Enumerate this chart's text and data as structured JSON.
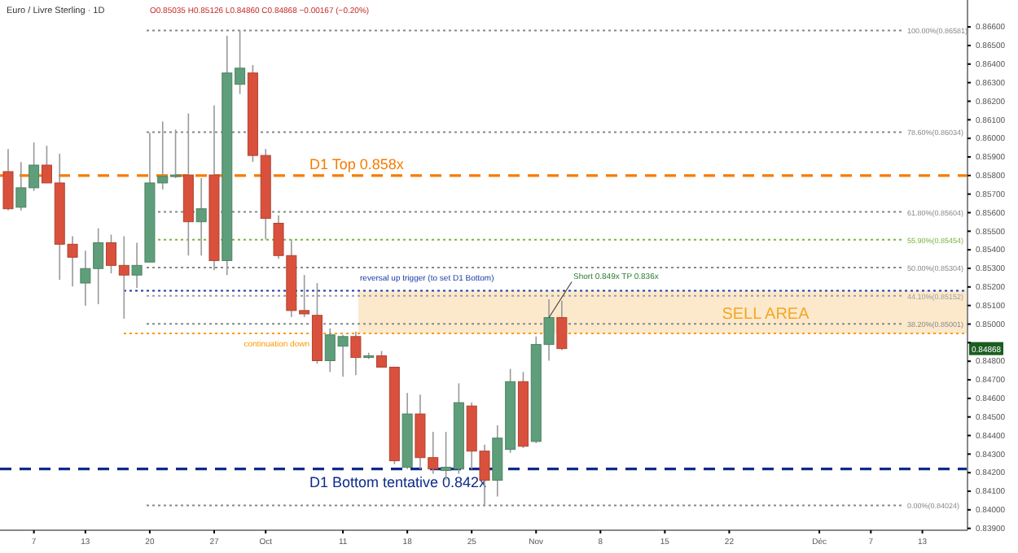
{
  "chart_data": {
    "type": "candlestick",
    "title": "Euro / Livre Sterling · 1D",
    "subtitle": "O0.85035 H0.85126 L0.84860 C0.84868 −0.00167 (−0.20%)",
    "categories": [
      null,
      null,
      "7",
      null,
      null,
      null,
      "13",
      null,
      null,
      null,
      null,
      "20",
      null,
      null,
      null,
      null,
      "27",
      null,
      null,
      null,
      "Oct",
      null,
      null,
      null,
      null,
      null,
      "11",
      null,
      null,
      null,
      null,
      "18",
      null,
      null,
      null,
      null,
      "25",
      null,
      null,
      null,
      null,
      "Nov",
      null,
      null,
      null,
      null,
      "8",
      null,
      null,
      null,
      null,
      "15",
      null,
      null,
      null,
      null,
      "22",
      null,
      null,
      null,
      null,
      null,
      null,
      "Déc",
      null,
      null,
      null,
      "7",
      null,
      null,
      null,
      "13",
      null,
      null,
      null
    ],
    "ohlc": [
      [
        0.85821,
        0.85943,
        0.85612,
        0.85621
      ],
      [
        0.85629,
        0.85873,
        0.85612,
        0.85734
      ],
      [
        0.85734,
        0.85978,
        0.85717,
        0.85856
      ],
      [
        0.85856,
        0.8596,
        0.8576,
        0.8576
      ],
      [
        0.8576,
        0.85917,
        0.85238,
        0.8543
      ],
      [
        0.8543,
        0.85473,
        0.85203,
        0.8536
      ],
      [
        0.85221,
        0.85395,
        0.85099,
        0.85299
      ],
      [
        0.85299,
        0.85516,
        0.85107,
        0.85438
      ],
      [
        0.85438,
        0.85482,
        0.85273,
        0.85316
      ],
      [
        0.85316,
        0.85473,
        0.85029,
        0.85264
      ],
      [
        0.85264,
        0.85438,
        0.85195,
        0.85316
      ],
      [
        0.85334,
        0.8603,
        0.85334,
        0.8576
      ],
      [
        0.8576,
        0.86091,
        0.85725,
        0.85795
      ],
      [
        0.85795,
        0.86047,
        0.85786,
        0.85803
      ],
      [
        0.85803,
        0.86134,
        0.85369,
        0.85551
      ],
      [
        0.85551,
        0.85786,
        0.85369,
        0.85621
      ],
      [
        0.85803,
        0.86178,
        0.8529,
        0.85342
      ],
      [
        0.85342,
        0.86552,
        0.85264,
        0.86352
      ],
      [
        0.86291,
        0.86581,
        0.86239,
        0.86378
      ],
      [
        0.86352,
        0.86395,
        0.85873,
        0.85908
      ],
      [
        0.85908,
        0.85943,
        0.85456,
        0.85569
      ],
      [
        0.85543,
        0.85586,
        0.85351,
        0.85369
      ],
      [
        0.85369,
        0.85456,
        0.85038,
        0.85073
      ],
      [
        0.85073,
        0.85264,
        0.85038,
        0.85055
      ],
      [
        0.85047,
        0.85221,
        0.84786,
        0.84803
      ],
      [
        0.84803,
        0.84977,
        0.84742,
        0.84942
      ],
      [
        0.84881,
        0.84942,
        0.84716,
        0.84933
      ],
      [
        0.84933,
        0.8496,
        0.84725,
        0.8482
      ],
      [
        0.8482,
        0.84846,
        0.84812,
        0.84829
      ],
      [
        0.84829,
        0.84855,
        0.84768,
        0.84768
      ],
      [
        0.84768,
        0.84768,
        0.84246,
        0.84264
      ],
      [
        0.84229,
        0.84629,
        0.8422,
        0.84516
      ],
      [
        0.84516,
        0.8462,
        0.8422,
        0.84281
      ],
      [
        0.84281,
        0.8442,
        0.84194,
        0.8422
      ],
      [
        0.84212,
        0.8442,
        0.84159,
        0.84229
      ],
      [
        0.8422,
        0.84681,
        0.84194,
        0.84577
      ],
      [
        0.84559,
        0.84577,
        0.8422,
        0.84316
      ],
      [
        0.84316,
        0.84351,
        0.84024,
        0.84159
      ],
      [
        0.84159,
        0.84455,
        0.84072,
        0.84386
      ],
      [
        0.84325,
        0.84759,
        0.84307,
        0.8469
      ],
      [
        0.8469,
        0.84742,
        0.84333,
        0.84342
      ],
      [
        0.84368,
        0.84933,
        0.84359,
        0.8489
      ],
      [
        0.8489,
        0.85134,
        0.84803,
        0.85035
      ],
      [
        0.85035,
        0.85126,
        0.8486,
        0.84868
      ],
      null,
      null,
      null,
      null,
      null,
      null,
      null,
      null,
      null,
      null,
      null,
      null,
      null,
      null,
      null,
      null,
      null,
      null,
      null,
      null,
      null,
      null,
      null,
      null,
      null,
      null,
      null,
      null,
      null,
      null,
      null
    ],
    "colors": [
      "#d9513c",
      "#5f9e7a",
      "#5f9e7a",
      "#d9513c",
      "#d9513c",
      "#d9513c",
      "#5f9e7a",
      "#5f9e7a",
      "#d9513c",
      "#d9513c",
      "#5f9e7a",
      "#5f9e7a",
      "#5f9e7a",
      "#5f9e7a",
      "#d9513c",
      "#5f9e7a",
      "#d9513c",
      "#5f9e7a",
      "#5f9e7a",
      "#d9513c",
      "#d9513c",
      "#d9513c",
      "#d9513c",
      "#d9513c",
      "#d9513c",
      "#5f9e7a",
      "#5f9e7a",
      "#d9513c",
      "#5f9e7a",
      "#d9513c",
      "#d9513c",
      "#5f9e7a",
      "#d9513c",
      "#d9513c",
      "#5f9e7a",
      "#5f9e7a",
      "#d9513c",
      "#d9513c",
      "#5f9e7a",
      "#5f9e7a",
      "#d9513c",
      "#5f9e7a",
      "#5f9e7a",
      "#d9513c",
      null,
      null,
      null,
      null,
      null,
      null,
      null,
      null,
      null,
      null,
      null,
      null,
      null,
      null,
      null,
      null,
      null,
      null,
      null,
      null,
      null,
      null,
      null,
      null,
      null,
      null,
      null,
      null,
      null,
      null,
      null
    ],
    "ylim": [
      0.8389,
      0.8671
    ],
    "yticks": [
      {
        "value": 0.839,
        "label": "0.83900"
      },
      {
        "value": 0.84,
        "label": "0.84000"
      },
      {
        "value": 0.841,
        "label": "0.84100"
      },
      {
        "value": 0.842,
        "label": "0.84200"
      },
      {
        "value": 0.843,
        "label": "0.84300"
      },
      {
        "value": 0.844,
        "label": "0.84400"
      },
      {
        "value": 0.845,
        "label": "0.84500"
      },
      {
        "value": 0.846,
        "label": "0.84600"
      },
      {
        "value": 0.847,
        "label": "0.84700"
      },
      {
        "value": 0.848,
        "label": "0.84800"
      },
      {
        "value": 0.849,
        "label": null
      },
      {
        "value": 0.85,
        "label": "0.85000"
      },
      {
        "value": 0.851,
        "label": "0.85100"
      },
      {
        "value": 0.852,
        "label": "0.85200"
      },
      {
        "value": 0.853,
        "label": "0.85300"
      },
      {
        "value": 0.854,
        "label": "0.85400"
      },
      {
        "value": 0.855,
        "label": "0.85500"
      },
      {
        "value": 0.856,
        "label": "0.85600"
      },
      {
        "value": 0.857,
        "label": "0.85700"
      },
      {
        "value": 0.858,
        "label": "0.85800"
      },
      {
        "value": 0.859,
        "label": "0.85900"
      },
      {
        "value": 0.86,
        "label": "0.86000"
      },
      {
        "value": 0.861,
        "label": "0.86100"
      },
      {
        "value": 0.862,
        "label": "0.86200"
      },
      {
        "value": 0.863,
        "label": "0.86300"
      },
      {
        "value": 0.864,
        "label": "0.86400"
      },
      {
        "value": 0.865,
        "label": "0.86500"
      },
      {
        "value": 0.866,
        "label": "0.86600"
      }
    ],
    "bands": [
      {
        "axis": "y",
        "from": 0.8495,
        "to": 0.8518,
        "label": "SELL AREA",
        "color": "#fbe3bf"
      }
    ],
    "ref_lines": [
      {
        "axis": "y",
        "value": 0.86581,
        "label": "100.00%(0.86581)",
        "color": "#888888",
        "line_style": "dotted"
      },
      {
        "axis": "y",
        "value": 0.86034,
        "label": "78.60%(0.86034)",
        "color": "#888888",
        "line_style": "dotted"
      },
      {
        "axis": "y",
        "value": 0.858,
        "label": "D1 Top 0.858x",
        "color": "#f57c00",
        "line_style": "dashed"
      },
      {
        "axis": "y",
        "value": 0.85604,
        "label": "61.80%(0.85604)",
        "color": "#888888",
        "line_style": "dotted"
      },
      {
        "axis": "y",
        "value": 0.85454,
        "label": "55.90%(0.85454)",
        "color": "#7cb342",
        "line_style": "dotted"
      },
      {
        "axis": "y",
        "value": 0.85304,
        "label": "50.00%(0.85304)",
        "color": "#888888",
        "line_style": "dotted"
      },
      {
        "axis": "y",
        "value": 0.8518,
        "label": "reversal up trigger (to set D1 Bottom)",
        "color": "#1a3aa8",
        "line_style": "dotted"
      },
      {
        "axis": "y",
        "value": 0.85152,
        "label": "44.10%(0.85152)",
        "color": "#9e9e9e",
        "line_style": "dotted"
      },
      {
        "axis": "y",
        "value": 0.85001,
        "label": "38.20%(0.85001)",
        "color": "#888888",
        "line_style": "dotted"
      },
      {
        "axis": "y",
        "value": 0.8495,
        "label": "continuation down",
        "color": "#ff9800",
        "line_style": "dotted"
      },
      {
        "axis": "y",
        "value": 0.8422,
        "label": "D1 Bottom tentative 0.842x",
        "color": "#0d2a8a",
        "line_style": "dashed"
      },
      {
        "axis": "y",
        "value": 0.84024,
        "label": "0.00%(0.84024)",
        "color": "#888888",
        "line_style": "dotted"
      }
    ],
    "annotations": [
      "0.84868",
      "Short 0.849x TP 0.836x"
    ]
  }
}
